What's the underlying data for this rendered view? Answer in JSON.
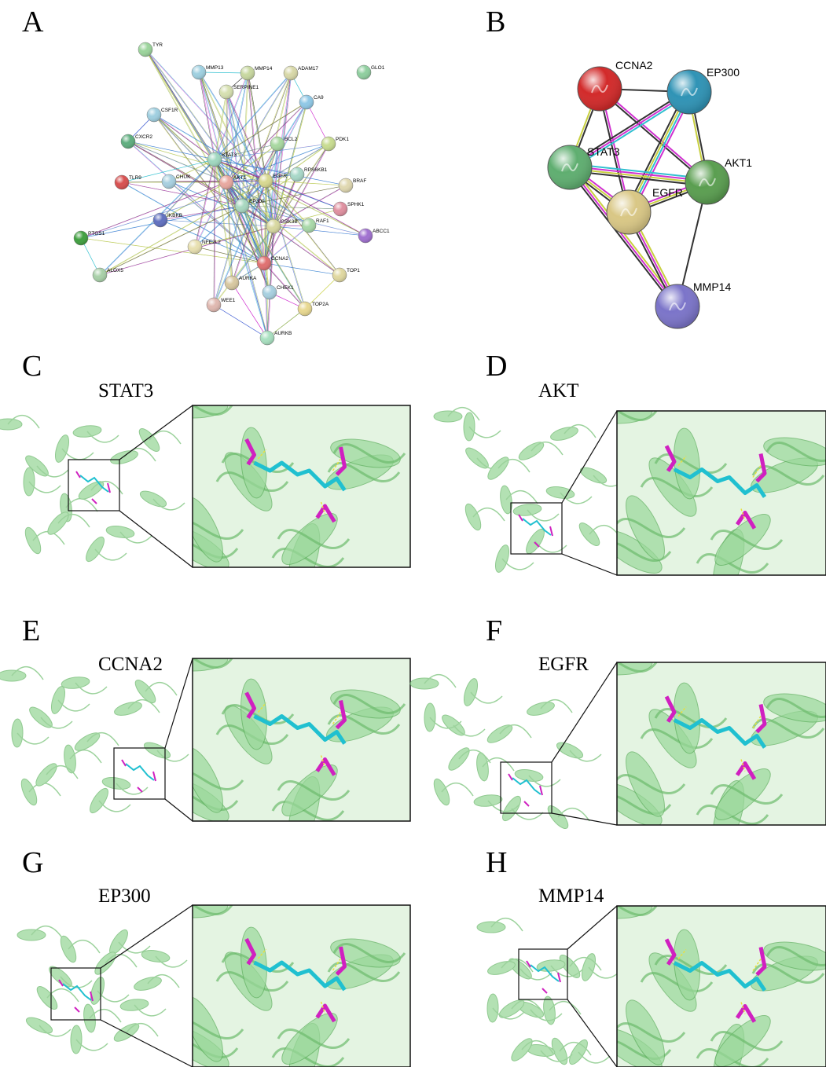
{
  "network_a": {
    "label": "A",
    "nodes": [
      "TYR",
      "MMP13",
      "MMP14",
      "ADAM17",
      "GLO1",
      "SERPINE1",
      "CA9",
      "CSF1R",
      "PDK1",
      "CXCR2",
      "BCL2",
      "STAT3",
      "AKT1",
      "EGFR",
      "RPS6KB1",
      "BRAF",
      "TLR9",
      "CHUK",
      "EP300",
      "SPHK1",
      "GSK3B",
      "RAF1",
      "IKBKB",
      "ABCC1",
      "PTGS1",
      "NFE2L2",
      "CCNA2",
      "ALOX5",
      "TOP1",
      "AURKA",
      "CHEK1",
      "WEE1",
      "TOP2A",
      "AURKB"
    ]
  },
  "network_b": {
    "label": "B",
    "nodes": [
      "CCNA2",
      "EP300",
      "STAT3",
      "AKT1",
      "EGFR",
      "MMP14"
    ]
  },
  "docking": [
    {
      "label": "C",
      "protein": "STAT3"
    },
    {
      "label": "D",
      "protein": "AKT"
    },
    {
      "label": "E",
      "protein": "CCNA2"
    },
    {
      "label": "F",
      "protein": "EGFR"
    },
    {
      "label": "G",
      "protein": "EP300"
    },
    {
      "label": "H",
      "protein": "MMP14"
    }
  ]
}
